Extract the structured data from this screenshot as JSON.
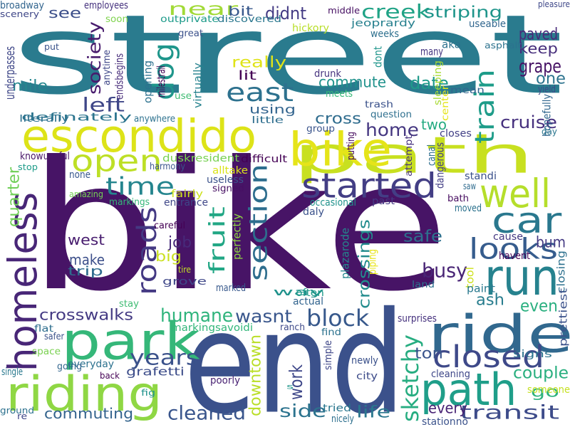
{
  "words": [
    {
      "text": "street",
      "color": "#2a7b8e"
    },
    {
      "text": "bike",
      "color": "#471466"
    },
    {
      "text": "end",
      "color": "#3b518b"
    },
    {
      "text": "path",
      "color": "#c8e020"
    },
    {
      "text": "escondido",
      "color": "#dde318"
    },
    {
      "text": "bike",
      "color": "#e5e419"
    },
    {
      "text": "park",
      "color": "#35b779"
    },
    {
      "text": "riding",
      "color": "#8fd744"
    },
    {
      "text": "ride",
      "color": "#31688e"
    },
    {
      "text": "run",
      "color": "#26828e"
    },
    {
      "text": "path",
      "color": "#1f9e89"
    },
    {
      "text": "homeless",
      "color": "#482677"
    },
    {
      "text": "well",
      "color": "#b5de2b"
    },
    {
      "text": "started",
      "color": "#433e85"
    },
    {
      "text": "open",
      "color": "#bddf26"
    },
    {
      "text": "car",
      "color": "#2a788e"
    },
    {
      "text": "east",
      "color": "#2d718e"
    },
    {
      "text": "looks",
      "color": "#365c8d"
    },
    {
      "text": "time",
      "color": "#25858e"
    },
    {
      "text": "closed",
      "color": "#3e4989"
    },
    {
      "text": "near",
      "color": "#a2da37"
    },
    {
      "text": "dog",
      "color": "#1f968b"
    },
    {
      "text": "section",
      "color": "#2e6e8e"
    },
    {
      "text": "roads",
      "color": "#443983"
    },
    {
      "text": "creek",
      "color": "#20a386"
    },
    {
      "text": "fruit",
      "color": "#22a785"
    },
    {
      "text": "train",
      "color": "#1e9c89"
    },
    {
      "text": "years",
      "color": "#3b528b"
    },
    {
      "text": "block",
      "color": "#38598c"
    },
    {
      "text": "home",
      "color": "#453781"
    },
    {
      "text": "left",
      "color": "#3f4788"
    },
    {
      "text": "cleaned",
      "color": "#39558c"
    },
    {
      "text": "transit",
      "color": "#3e4c8a"
    },
    {
      "text": "busy",
      "color": "#482475"
    },
    {
      "text": "side",
      "color": "#2c738e"
    },
    {
      "text": "sketchy",
      "color": "#27ad81"
    },
    {
      "text": "wasnt",
      "color": "#39568c"
    },
    {
      "text": "humane",
      "color": "#2fb47c"
    },
    {
      "text": "society",
      "color": "#481b6d"
    },
    {
      "text": "really",
      "color": "#dfe318"
    },
    {
      "text": "commute",
      "color": "#20928c"
    },
    {
      "text": "cross",
      "color": "#2f6c8e"
    },
    {
      "text": "work",
      "color": "#3f4889"
    },
    {
      "text": "cruise",
      "color": "#46307e"
    },
    {
      "text": "crossings",
      "color": "#228c8d"
    },
    {
      "text": "crosswalks",
      "color": "#443a83"
    },
    {
      "text": "downtown",
      "color": "#bade28"
    },
    {
      "text": "couple",
      "color": "#29af7f"
    },
    {
      "text": "grape",
      "color": "#471365"
    },
    {
      "text": "safe",
      "color": "#2d708e"
    },
    {
      "text": "striping",
      "color": "#1f958b"
    },
    {
      "text": "paved",
      "color": "#482979"
    },
    {
      "text": "keep",
      "color": "#472e7c"
    },
    {
      "text": "make",
      "color": "#3c4f8a"
    },
    {
      "text": "mile",
      "color": "#24868e"
    },
    {
      "text": "west",
      "color": "#481d6f"
    },
    {
      "text": "ash",
      "color": "#287d8e"
    },
    {
      "text": "even",
      "color": "#29af7f"
    },
    {
      "text": "life",
      "color": "#2a778e"
    },
    {
      "text": "every",
      "color": "#482374"
    },
    {
      "text": "lit",
      "color": "#440154"
    },
    {
      "text": "date",
      "color": "#1f9a8a"
    },
    {
      "text": "quarter",
      "color": "#70cf57"
    },
    {
      "text": "commuting",
      "color": "#33638d"
    },
    {
      "text": "one",
      "color": "#2c738e"
    },
    {
      "text": "two",
      "color": "#25ab82"
    },
    {
      "text": "see",
      "color": "#3c4f8a"
    },
    {
      "text": "didnt",
      "color": "#443b84"
    },
    {
      "text": "using",
      "color": "#32648e"
    },
    {
      "text": "job",
      "color": "#472a7a"
    },
    {
      "text": "big",
      "color": "#cae11f"
    },
    {
      "text": "trip",
      "color": "#2f6b8e"
    },
    {
      "text": "bit",
      "color": "#38588c"
    },
    {
      "text": "bum",
      "color": "#443983"
    },
    {
      "text": "ton",
      "color": "#3a548c"
    },
    {
      "text": "go",
      "color": "#2db27d"
    },
    {
      "text": "definately",
      "color": "#2b748e"
    },
    {
      "text": "grafetti",
      "color": "#3d4d8a"
    },
    {
      "text": "broadway",
      "color": "#32658e"
    },
    {
      "text": "employees",
      "color": "#46327e"
    },
    {
      "text": "way",
      "color": "#20928c"
    },
    {
      "text": "scenery",
      "color": "#3f4788"
    },
    {
      "text": "soon",
      "color": "#7fd34e"
    },
    {
      "text": "outprivate",
      "color": "#1e9b8a"
    },
    {
      "text": "discovered",
      "color": "#2a778e"
    },
    {
      "text": "great",
      "color": "#3b518b"
    },
    {
      "text": "hickory",
      "color": "#b8de29"
    },
    {
      "text": "jeoprardy",
      "color": "#27808e"
    },
    {
      "text": "middle",
      "color": "#471063"
    },
    {
      "text": "pleasure",
      "color": "#3f4889"
    },
    {
      "text": "aka",
      "color": "#2c718e"
    },
    {
      "text": "many",
      "color": "#453581"
    },
    {
      "text": "useable",
      "color": "#31668e"
    },
    {
      "text": "weeks",
      "color": "#2d708e"
    },
    {
      "text": "asphalt",
      "color": "#2c728e"
    },
    {
      "text": "dont",
      "color": "#1f958b"
    },
    {
      "text": "drunk",
      "color": "#46337f"
    },
    {
      "text": "put",
      "color": "#3a538b"
    },
    {
      "text": "underpasses",
      "color": "#3f4788"
    },
    {
      "text": "endsbegins",
      "color": "#472c7a"
    },
    {
      "text": "anytime",
      "color": "#3f4788"
    },
    {
      "text": "opening",
      "color": "#2c718e"
    },
    {
      "text": "milestrail",
      "color": "#440154"
    },
    {
      "text": "virtually",
      "color": "#26828e"
    },
    {
      "text": "use",
      "color": "#3fbc73"
    },
    {
      "text": "meets",
      "color": "#37b878"
    },
    {
      "text": "trash",
      "color": "#3b528b"
    },
    {
      "text": "question",
      "color": "#2e6f8e"
    },
    {
      "text": "group",
      "color": "#3a548c"
    },
    {
      "text": "putting",
      "color": "#460b5e"
    },
    {
      "text": "mean",
      "color": "#32648e"
    },
    {
      "text": "sleeping",
      "color": "#a8db34"
    },
    {
      "text": "center",
      "color": "#e5e419"
    },
    {
      "text": "yield",
      "color": "#3e4a89"
    },
    {
      "text": "hopefully",
      "color": "#31678e"
    },
    {
      "text": "day",
      "color": "#2a768e"
    },
    {
      "text": "closes",
      "color": "#424086"
    },
    {
      "text": "attempt",
      "color": "#46307e"
    },
    {
      "text": "canal",
      "color": "#2e6e8e"
    },
    {
      "text": "dangerous",
      "color": "#433e85"
    },
    {
      "text": "standi",
      "color": "#3b518b"
    },
    {
      "text": "saw",
      "color": "#2f6b8e"
    },
    {
      "text": "bath",
      "color": "#470d60"
    },
    {
      "text": "moved",
      "color": "#2c728e"
    },
    {
      "text": "cause",
      "color": "#453882"
    },
    {
      "text": "havent",
      "color": "#440154"
    },
    {
      "text": "closing",
      "color": "#2d718e"
    },
    {
      "text": "tool",
      "color": "#cde11d"
    },
    {
      "text": "paint",
      "color": "#29798e"
    },
    {
      "text": "prettiest",
      "color": "#3b528b"
    },
    {
      "text": "signs",
      "color": "#2c738e"
    },
    {
      "text": "someone",
      "color": "#c5e021"
    },
    {
      "text": "literally",
      "color": "#2d708e"
    },
    {
      "text": "anywhere",
      "color": "#2c718e"
    },
    {
      "text": "little",
      "color": "#2e6e8e"
    },
    {
      "text": "knowuseful",
      "color": "#471466"
    },
    {
      "text": "duskresident",
      "color": "#77d153"
    },
    {
      "text": "difficult",
      "color": "#440154"
    },
    {
      "text": "stop",
      "color": "#1e9c89"
    },
    {
      "text": "harmony",
      "color": "#3a548c"
    },
    {
      "text": "alltake",
      "color": "#dae319"
    },
    {
      "text": "useless",
      "color": "#3b528b"
    },
    {
      "text": "none",
      "color": "#38588c"
    },
    {
      "text": "signed",
      "color": "#471063"
    },
    {
      "text": "amazing",
      "color": "#75d054"
    },
    {
      "text": "markings",
      "color": "#35b779"
    },
    {
      "text": "fairly",
      "color": "#cde11d"
    },
    {
      "text": "entrance",
      "color": "#3f4788"
    },
    {
      "text": "occasional",
      "color": "#20928c"
    },
    {
      "text": "daly",
      "color": "#3b528b"
    },
    {
      "text": "past",
      "color": "#453882"
    },
    {
      "text": "careful",
      "color": "#440154"
    },
    {
      "text": "perfectly",
      "color": "#90d743"
    },
    {
      "text": "plazarode",
      "color": "#24878e"
    },
    {
      "text": "piping",
      "color": "#e7e419"
    },
    {
      "text": "tire",
      "color": "#c2df23"
    },
    {
      "text": "grove",
      "color": "#3f4788"
    },
    {
      "text": "land",
      "color": "#2d708e"
    },
    {
      "text": "marked",
      "color": "#38598c"
    },
    {
      "text": "stay",
      "color": "#3fbc73"
    },
    {
      "text": "often",
      "color": "#1f9a8a"
    },
    {
      "text": "actual",
      "color": "#32648e"
    },
    {
      "text": "flat",
      "color": "#2e6e8e"
    },
    {
      "text": "markingsavoidi",
      "color": "#32b67a"
    },
    {
      "text": "ranch",
      "color": "#3e4989"
    },
    {
      "text": "find",
      "color": "#2c728e"
    },
    {
      "text": "surprises",
      "color": "#46327e"
    },
    {
      "text": "safer",
      "color": "#3b528b"
    },
    {
      "text": "space",
      "color": "#7ad151"
    },
    {
      "text": "everyday",
      "color": "#2c718e"
    },
    {
      "text": "simple",
      "color": "#3f4788"
    },
    {
      "text": "newly",
      "color": "#3b518b"
    },
    {
      "text": "single",
      "color": "#29798e"
    },
    {
      "text": "going",
      "color": "#32658e"
    },
    {
      "text": "back",
      "color": "#440154"
    },
    {
      "text": "poorly",
      "color": "#482173"
    },
    {
      "text": "fig",
      "color": "#20928c"
    },
    {
      "text": "city",
      "color": "#3e4c8a"
    },
    {
      "text": "cleaning",
      "color": "#3f4889"
    },
    {
      "text": "s",
      "color": "#1f968b"
    },
    {
      "text": "ground",
      "color": "#2c718e"
    },
    {
      "text": "re",
      "color": "#3f4788"
    },
    {
      "text": "tried",
      "color": "#2a768e"
    },
    {
      "text": "nicely",
      "color": "#2d708e"
    },
    {
      "text": "stationno",
      "color": "#3b528b"
    }
  ]
}
